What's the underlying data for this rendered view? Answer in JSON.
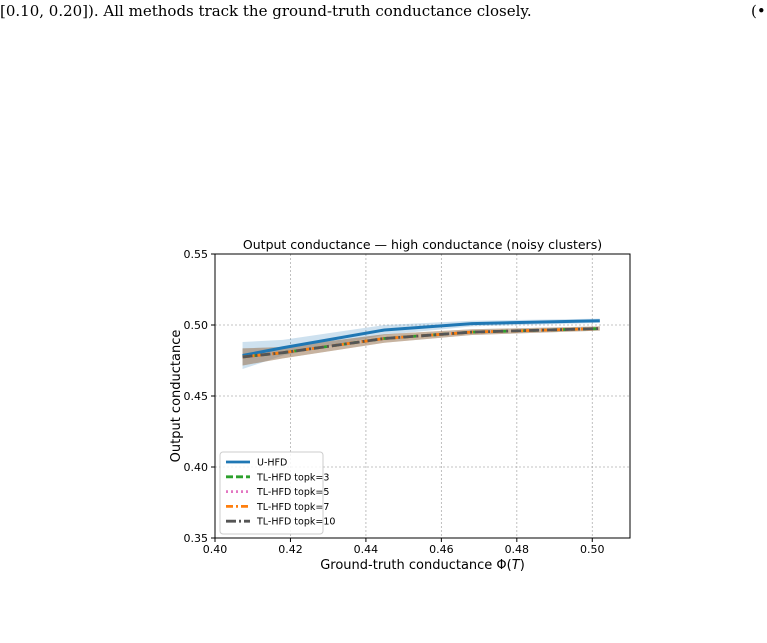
{
  "caption": {
    "line": "[0.10, 0.20]). All methods track the ground-truth conductance closely.",
    "tail": "(•"
  },
  "chart_data": {
    "type": "line",
    "title": "Output conductance — high conductance (noisy clusters)",
    "xlabel": "Ground-truth conductance Φ(T)",
    "ylabel": "Output conductance",
    "xlim": [
      0.4,
      0.51
    ],
    "ylim": [
      0.35,
      0.55
    ],
    "xticks": [
      "0.40",
      "0.42",
      "0.44",
      "0.46",
      "0.48",
      "0.50"
    ],
    "yticks": [
      "0.35",
      "0.40",
      "0.45",
      "0.50",
      "0.55"
    ],
    "grid": true,
    "legend_position": "lower-left",
    "x": [
      0.4073,
      0.418,
      0.4449,
      0.4681,
      0.502
    ],
    "series": [
      {
        "name": "U-HFD",
        "values": [
          0.4785,
          0.484,
          0.4965,
          0.501,
          0.503
        ],
        "band": [
          0.0095,
          0.0055,
          0.0035,
          0.002,
          0.0015
        ],
        "color": "#1f77b4",
        "style": "solid"
      },
      {
        "name": "TL-HFD topk=3",
        "values": [
          0.4775,
          0.4805,
          0.4905,
          0.495,
          0.4975
        ],
        "band": [
          0.006,
          0.004,
          0.003,
          0.002,
          0.0015
        ],
        "color": "#2ca02c",
        "style": "dashed"
      },
      {
        "name": "TL-HFD topk=5",
        "values": [
          0.4775,
          0.4805,
          0.4905,
          0.495,
          0.4975
        ],
        "band": [
          0.006,
          0.004,
          0.003,
          0.002,
          0.0015
        ],
        "color": "#e377c2",
        "style": "dotted"
      },
      {
        "name": "TL-HFD topk=7",
        "values": [
          0.4775,
          0.4805,
          0.4905,
          0.495,
          0.4975
        ],
        "band": [
          0.006,
          0.004,
          0.003,
          0.002,
          0.0015
        ],
        "color": "#ff7f0e",
        "style": "dashdot"
      },
      {
        "name": "TL-HFD topk=10",
        "values": [
          0.4775,
          0.4805,
          0.4905,
          0.495,
          0.4975
        ],
        "band": [
          0.006,
          0.004,
          0.003,
          0.002,
          0.0015
        ],
        "color": "#555555",
        "style": "dashdot-long"
      }
    ]
  }
}
